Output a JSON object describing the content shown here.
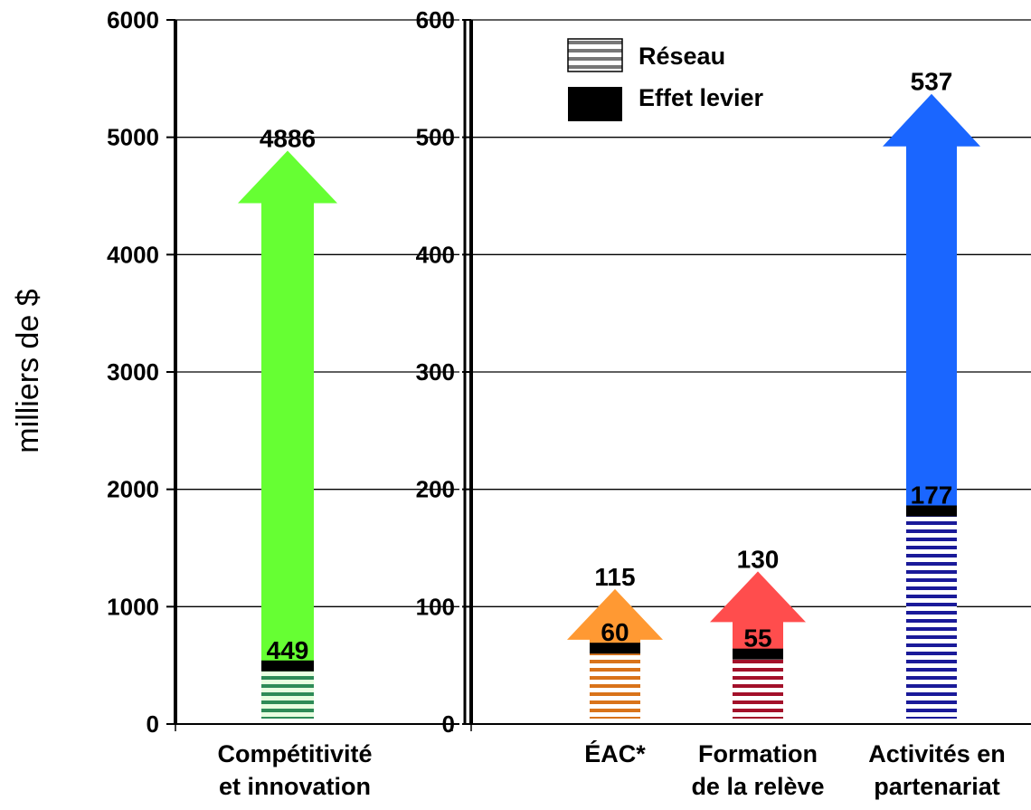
{
  "chart_data": [
    {
      "type": "bar",
      "panel": "left",
      "ylabel": "milliers de $",
      "ylim": [
        0,
        6000
      ],
      "yticks": [
        0,
        1000,
        2000,
        3000,
        4000,
        5000,
        6000
      ],
      "grid": true,
      "categories": [
        {
          "lines": [
            "Compétitivité",
            "et innovation"
          ]
        }
      ],
      "series": [
        {
          "name": "Réseau",
          "values": [
            449
          ]
        },
        {
          "name": "Effet levier",
          "values": [
            4886
          ]
        }
      ],
      "value_labels": [
        {
          "network": "449",
          "total": "4886"
        }
      ],
      "colors": [
        "#66ff33"
      ],
      "stripe_colors": [
        "#2e8b57"
      ]
    },
    {
      "type": "bar",
      "panel": "right",
      "ylim": [
        0,
        600
      ],
      "yticks": [
        0,
        100,
        200,
        300,
        400,
        500,
        600
      ],
      "grid": true,
      "categories": [
        {
          "lines": [
            "ÉAC*"
          ]
        },
        {
          "lines": [
            "Formation",
            "de la relève"
          ]
        },
        {
          "lines": [
            "Activités en",
            "partenariat"
          ]
        }
      ],
      "series": [
        {
          "name": "Réseau",
          "values": [
            60,
            55,
            177
          ]
        },
        {
          "name": "Effet levier",
          "values": [
            115,
            130,
            537
          ]
        }
      ],
      "value_labels": [
        {
          "network": "60",
          "total": "115"
        },
        {
          "network": "55",
          "total": "130"
        },
        {
          "network": "177",
          "total": "537"
        }
      ],
      "colors": [
        "#ff9933",
        "#ff4d4d",
        "#1a66ff"
      ],
      "stripe_colors": [
        "#d9731a",
        "#a3102a",
        "#1a1a99"
      ]
    }
  ],
  "legend": {
    "placement": "top-left of right panel",
    "items": [
      {
        "label": "Réseau",
        "swatch": "striped"
      },
      {
        "label": "Effet levier",
        "swatch": "solid-black"
      }
    ]
  }
}
